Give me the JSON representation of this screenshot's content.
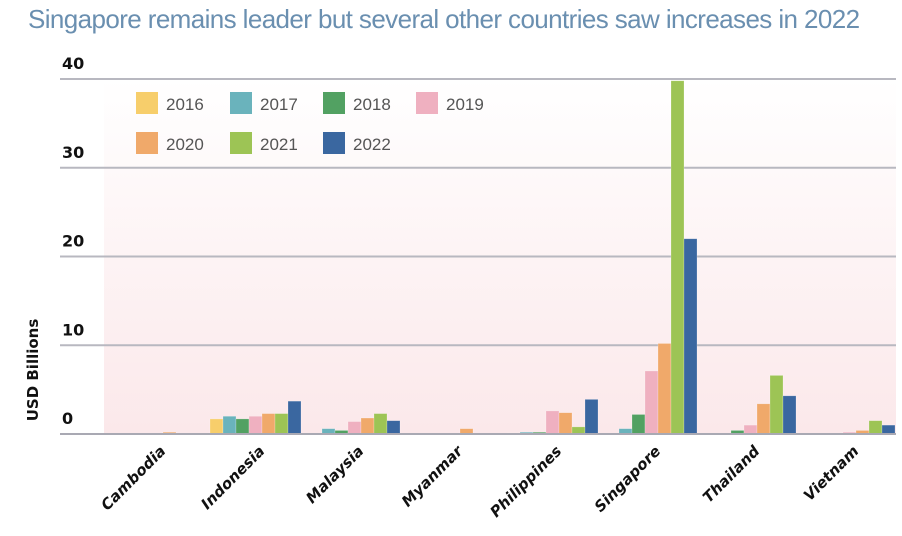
{
  "chart_data": {
    "type": "bar",
    "title": "Singapore remains leader but several other countries saw increases in 2022",
    "xlabel": "",
    "ylabel": "USD Billions",
    "ylim": [
      0,
      40
    ],
    "yticks": [
      0,
      10,
      20,
      30,
      40
    ],
    "grid": true,
    "legend_position": "top-left",
    "categories": [
      "Cambodia",
      "Indonesia",
      "Malaysia",
      "Myanmar",
      "Philippines",
      "Singapore",
      "Thailand",
      "Vietnam"
    ],
    "series": [
      {
        "name": "2016",
        "color": "#f7ce6b",
        "values": [
          0,
          1.7,
          0,
          0,
          0.1,
          0,
          0,
          0
        ]
      },
      {
        "name": "2017",
        "color": "#6ab3bc",
        "values": [
          0,
          2.0,
          0.6,
          0,
          0.2,
          0.6,
          0,
          0
        ]
      },
      {
        "name": "2018",
        "color": "#52a162",
        "values": [
          0,
          1.7,
          0.4,
          0,
          0.2,
          2.2,
          0.4,
          0
        ]
      },
      {
        "name": "2019",
        "color": "#efb0c0",
        "values": [
          0,
          2.0,
          1.4,
          0,
          2.6,
          7.1,
          1.0,
          0.2
        ]
      },
      {
        "name": "2020",
        "color": "#f0a96a",
        "values": [
          0.2,
          2.3,
          1.8,
          0.6,
          2.4,
          10.2,
          3.4,
          0.4
        ]
      },
      {
        "name": "2021",
        "color": "#9dc455",
        "values": [
          0,
          2.3,
          2.3,
          0,
          0.8,
          39.8,
          6.6,
          1.5
        ]
      },
      {
        "name": "2022",
        "color": "#3a67a0",
        "values": [
          0,
          3.7,
          1.5,
          0,
          3.9,
          22.0,
          4.3,
          1.0
        ]
      }
    ]
  }
}
